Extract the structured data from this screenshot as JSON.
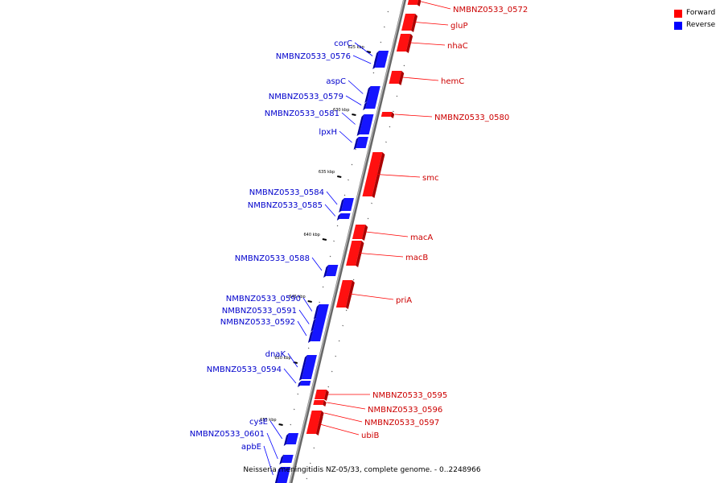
{
  "legend": [
    {
      "label": "Forward",
      "color": "#ff0000"
    },
    {
      "label": "Reverse",
      "color": "#0000ff"
    }
  ],
  "caption": "Neisseria meningitidis NZ-05/33, complete genome. - 0..2248966",
  "ticks": [
    "625 kbp",
    "630 kbp",
    "635 kbp",
    "640 kbp",
    "645 kbp",
    "650 kbp",
    "655 kbp"
  ],
  "genes_forward": [
    "NMBNZ0533_0572",
    "gluP",
    "nhaC",
    "hemC",
    "NMBNZ0533_0580",
    "smc",
    "macA",
    "macB",
    "priA",
    "NMBNZ0533_0595",
    "NMBNZ0533_0596",
    "NMBNZ0533_0597",
    "ubiB"
  ],
  "genes_reverse": [
    "corC",
    "NMBNZ0533_0576",
    "aspC",
    "NMBNZ0533_0579",
    "NMBNZ0533_0581",
    "lpxH",
    "NMBNZ0533_0584",
    "NMBNZ0533_0585",
    "NMBNZ0533_0588",
    "NMBNZ0533_0590",
    "NMBNZ0533_0591",
    "NMBNZ0533_0592",
    "dnaK",
    "NMBNZ0533_0594",
    "cysE",
    "NMBNZ0533_0601",
    "apbE"
  ]
}
